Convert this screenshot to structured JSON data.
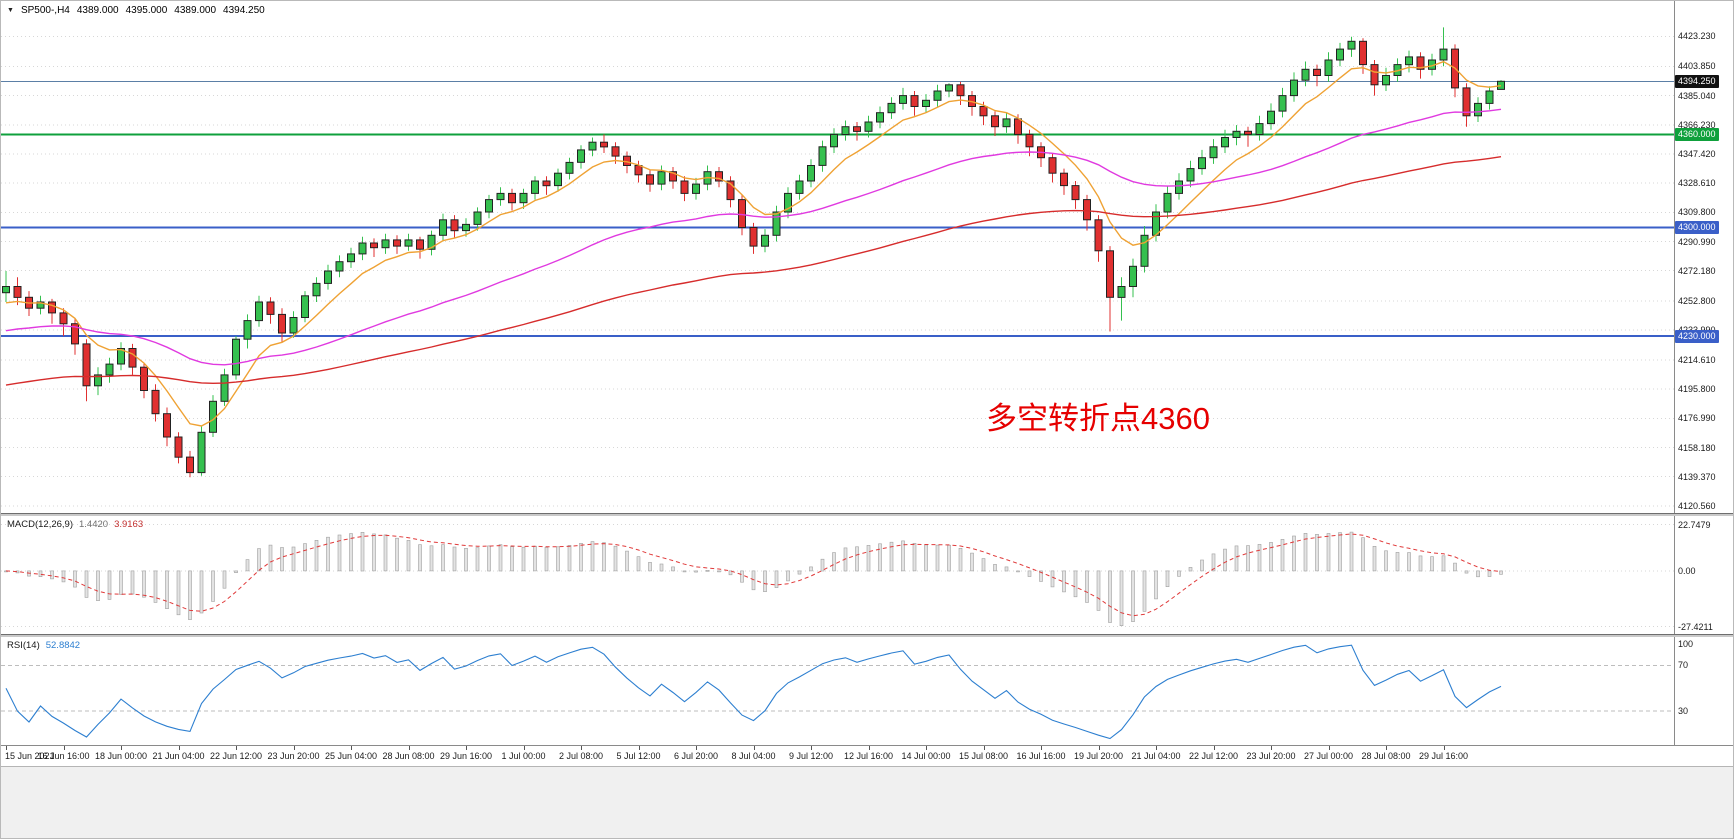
{
  "header": {
    "title": "SP500-,H4",
    "open": "4389.000",
    "high": "4395.000",
    "low": "4389.000",
    "close": "4394.250"
  },
  "annotation": {
    "text": "多空转折点4360",
    "color": "#e60000"
  },
  "price_axis": {
    "badges": [
      {
        "text": "4394.250",
        "price": 4394.25,
        "bg": "#111111"
      },
      {
        "text": "4360.000",
        "price": 4360.0,
        "bg": "#0fa03c"
      },
      {
        "text": "4300.000",
        "price": 4300.0,
        "bg": "#3a5fc8"
      },
      {
        "text": "4230.000",
        "price": 4230.0,
        "bg": "#3a5fc8"
      }
    ]
  },
  "chart_data": {
    "type": "candlestick",
    "symbol_period": "SP500-,H4",
    "current_bar_ohlc": [
      4389.0,
      4395.0,
      4389.0,
      4394.25
    ],
    "y_axis_ticks": [
      "4423.230",
      "4403.850",
      "4385.040",
      "4366.230",
      "4347.420",
      "4328.610",
      "4309.800",
      "4290.990",
      "4272.180",
      "4252.800",
      "4233.990",
      "4214.610",
      "4195.800",
      "4176.990",
      "4158.180",
      "4139.370",
      "4120.560"
    ],
    "x_axis_ticks": [
      "15 Jun 2021",
      "16 Jun 16:00",
      "18 Jun 00:00",
      "21 Jun 04:00",
      "22 Jun 12:00",
      "23 Jun 20:00",
      "25 Jun 04:00",
      "28 Jun 08:00",
      "29 Jun 16:00",
      "1 Jul 00:00",
      "2 Jul 08:00",
      "5 Jul 12:00",
      "6 Jul 20:00",
      "8 Jul 04:00",
      "9 Jul 12:00",
      "12 Jul 16:00",
      "14 Jul 00:00",
      "15 Jul 08:00",
      "16 Jul 16:00",
      "19 Jul 20:00",
      "21 Jul 04:00",
      "22 Jul 12:00",
      "23 Jul 20:00",
      "27 Jul 00:00",
      "28 Jul 08:00",
      "29 Jul 16:00"
    ],
    "bars_per_x_tick": 5,
    "price_range_rendered": [
      4116,
      4446
    ],
    "horizontal_levels": [
      {
        "price": 4394.25,
        "color": "#5b7fa6",
        "width": 1
      },
      {
        "price": 4360.0,
        "color": "#0fa03c",
        "width": 2
      },
      {
        "price": 4300.0,
        "color": "#3a5fc8",
        "width": 2
      },
      {
        "price": 4230.0,
        "color": "#3a5fc8",
        "width": 2
      }
    ],
    "candles_ohlc": [
      [
        4258,
        4272,
        4252,
        4262
      ],
      [
        4262,
        4268,
        4250,
        4255
      ],
      [
        4255,
        4259,
        4243,
        4248
      ],
      [
        4248,
        4256,
        4244,
        4252
      ],
      [
        4252,
        4254,
        4238,
        4245
      ],
      [
        4245,
        4248,
        4230,
        4238
      ],
      [
        4238,
        4241,
        4218,
        4225
      ],
      [
        4225,
        4228,
        4188,
        4198
      ],
      [
        4198,
        4210,
        4192,
        4205
      ],
      [
        4205,
        4216,
        4200,
        4212
      ],
      [
        4212,
        4226,
        4208,
        4222
      ],
      [
        4222,
        4225,
        4205,
        4210
      ],
      [
        4210,
        4213,
        4190,
        4195
      ],
      [
        4195,
        4199,
        4175,
        4180
      ],
      [
        4180,
        4184,
        4159,
        4165
      ],
      [
        4165,
        4168,
        4148,
        4152
      ],
      [
        4152,
        4156,
        4139,
        4142
      ],
      [
        4142,
        4172,
        4140,
        4168
      ],
      [
        4168,
        4192,
        4165,
        4188
      ],
      [
        4188,
        4209,
        4185,
        4205
      ],
      [
        4205,
        4230,
        4202,
        4228
      ],
      [
        4228,
        4244,
        4222,
        4240
      ],
      [
        4240,
        4256,
        4236,
        4252
      ],
      [
        4252,
        4255,
        4238,
        4244
      ],
      [
        4244,
        4248,
        4226,
        4232
      ],
      [
        4232,
        4246,
        4229,
        4242
      ],
      [
        4242,
        4259,
        4239,
        4256
      ],
      [
        4256,
        4268,
        4252,
        4264
      ],
      [
        4264,
        4276,
        4260,
        4272
      ],
      [
        4272,
        4282,
        4268,
        4278
      ],
      [
        4278,
        4287,
        4274,
        4283
      ],
      [
        4283,
        4294,
        4279,
        4290
      ],
      [
        4290,
        4293,
        4281,
        4287
      ],
      [
        4287,
        4296,
        4283,
        4292
      ],
      [
        4292,
        4295,
        4283,
        4288
      ],
      [
        4288,
        4296,
        4285,
        4292
      ],
      [
        4292,
        4294,
        4280,
        4286
      ],
      [
        4286,
        4298,
        4282,
        4295
      ],
      [
        4295,
        4309,
        4291,
        4305
      ],
      [
        4305,
        4308,
        4293,
        4298
      ],
      [
        4298,
        4306,
        4294,
        4302
      ],
      [
        4302,
        4313,
        4298,
        4310
      ],
      [
        4310,
        4321,
        4306,
        4318
      ],
      [
        4318,
        4326,
        4314,
        4322
      ],
      [
        4322,
        4325,
        4311,
        4316
      ],
      [
        4316,
        4325,
        4312,
        4322
      ],
      [
        4322,
        4333,
        4318,
        4330
      ],
      [
        4330,
        4333,
        4321,
        4327
      ],
      [
        4327,
        4338,
        4323,
        4335
      ],
      [
        4335,
        4345,
        4331,
        4342
      ],
      [
        4342,
        4353,
        4338,
        4350
      ],
      [
        4350,
        4358,
        4346,
        4355
      ],
      [
        4355,
        4360,
        4348,
        4352
      ],
      [
        4352,
        4355,
        4341,
        4346
      ],
      [
        4346,
        4349,
        4335,
        4340
      ],
      [
        4340,
        4343,
        4329,
        4334
      ],
      [
        4334,
        4337,
        4323,
        4328
      ],
      [
        4328,
        4340,
        4324,
        4336
      ],
      [
        4336,
        4339,
        4325,
        4330
      ],
      [
        4330,
        4333,
        4317,
        4322
      ],
      [
        4322,
        4332,
        4318,
        4328
      ],
      [
        4328,
        4340,
        4324,
        4336
      ],
      [
        4336,
        4339,
        4326,
        4330
      ],
      [
        4330,
        4333,
        4313,
        4318
      ],
      [
        4318,
        4321,
        4295,
        4300
      ],
      [
        4300,
        4303,
        4283,
        4288
      ],
      [
        4288,
        4299,
        4284,
        4295
      ],
      [
        4295,
        4314,
        4291,
        4310
      ],
      [
        4310,
        4326,
        4306,
        4322
      ],
      [
        4322,
        4334,
        4318,
        4330
      ],
      [
        4330,
        4344,
        4326,
        4340
      ],
      [
        4340,
        4356,
        4336,
        4352
      ],
      [
        4352,
        4364,
        4348,
        4360
      ],
      [
        4360,
        4369,
        4356,
        4365
      ],
      [
        4365,
        4368,
        4356,
        4362
      ],
      [
        4362,
        4372,
        4358,
        4368
      ],
      [
        4368,
        4378,
        4364,
        4374
      ],
      [
        4374,
        4384,
        4370,
        4380
      ],
      [
        4380,
        4390,
        4376,
        4385
      ],
      [
        4385,
        4388,
        4372,
        4378
      ],
      [
        4378,
        4386,
        4374,
        4382
      ],
      [
        4382,
        4392,
        4378,
        4388
      ],
      [
        4388,
        4393,
        4384,
        4392
      ],
      [
        4392,
        4394,
        4379,
        4385
      ],
      [
        4385,
        4388,
        4372,
        4378
      ],
      [
        4378,
        4381,
        4366,
        4372
      ],
      [
        4372,
        4375,
        4359,
        4365
      ],
      [
        4365,
        4374,
        4361,
        4370
      ],
      [
        4370,
        4373,
        4354,
        4360
      ],
      [
        4360,
        4363,
        4346,
        4352
      ],
      [
        4352,
        4355,
        4339,
        4345
      ],
      [
        4345,
        4348,
        4329,
        4335
      ],
      [
        4335,
        4338,
        4321,
        4327
      ],
      [
        4327,
        4330,
        4312,
        4318
      ],
      [
        4318,
        4321,
        4298,
        4305
      ],
      [
        4305,
        4308,
        4278,
        4285
      ],
      [
        4285,
        4288,
        4233,
        4255
      ],
      [
        4255,
        4268,
        4240,
        4262
      ],
      [
        4262,
        4280,
        4255,
        4275
      ],
      [
        4275,
        4301,
        4271,
        4295
      ],
      [
        4295,
        4315,
        4291,
        4310
      ],
      [
        4310,
        4327,
        4306,
        4322
      ],
      [
        4322,
        4335,
        4318,
        4330
      ],
      [
        4330,
        4343,
        4326,
        4338
      ],
      [
        4338,
        4350,
        4334,
        4345
      ],
      [
        4345,
        4357,
        4341,
        4352
      ],
      [
        4352,
        4363,
        4348,
        4358
      ],
      [
        4358,
        4366,
        4353,
        4362
      ],
      [
        4362,
        4365,
        4352,
        4360
      ],
      [
        4360,
        4372,
        4356,
        4367
      ],
      [
        4367,
        4380,
        4363,
        4375
      ],
      [
        4375,
        4390,
        4371,
        4385
      ],
      [
        4385,
        4400,
        4381,
        4395
      ],
      [
        4395,
        4407,
        4391,
        4402
      ],
      [
        4402,
        4405,
        4391,
        4398
      ],
      [
        4398,
        4413,
        4394,
        4408
      ],
      [
        4408,
        4419,
        4404,
        4415
      ],
      [
        4415,
        4423,
        4410,
        4420
      ],
      [
        4420,
        4422,
        4399,
        4405
      ],
      [
        4405,
        4408,
        4385,
        4392
      ],
      [
        4392,
        4403,
        4388,
        4398
      ],
      [
        4398,
        4409,
        4394,
        4405
      ],
      [
        4405,
        4414,
        4400,
        4410
      ],
      [
        4410,
        4413,
        4396,
        4402
      ],
      [
        4402,
        4412,
        4398,
        4408
      ],
      [
        4408,
        4429,
        4404,
        4415
      ],
      [
        4415,
        4418,
        4384,
        4390
      ],
      [
        4390,
        4393,
        4365,
        4372
      ],
      [
        4372,
        4384,
        4368,
        4380
      ],
      [
        4380,
        4391,
        4376,
        4388
      ],
      [
        4389,
        4395,
        4389,
        4394.25
      ]
    ],
    "colors": {
      "up": "#35c04f",
      "down": "#e03030",
      "candle_outline": "#222222",
      "ma_fast": "#efa234",
      "ma_mid": "#e03ae0",
      "ma_slow": "#d62c2c",
      "grid": "#d7d7d7"
    },
    "indicators": {
      "macd": {
        "label": "MACD(12,26,9)",
        "value1": "1.4420",
        "value2": "3.9163",
        "axis_ticks": [
          "22.7479",
          "0.00",
          "-27.4211"
        ],
        "axis_values": [
          22.7479,
          0,
          -27.4211
        ],
        "range_rendered": [
          -31,
          27
        ],
        "hist_fill": "#e3e3e3",
        "hist_stroke": "#9e9e9e",
        "signal_color": "#e03a3a"
      },
      "rsi": {
        "label": "RSI(14)",
        "value": "52.8842",
        "axis_ticks": [
          "100",
          "70",
          "30"
        ],
        "level_lines": [
          70,
          30
        ],
        "line_color": "#2d7fd0"
      }
    }
  }
}
